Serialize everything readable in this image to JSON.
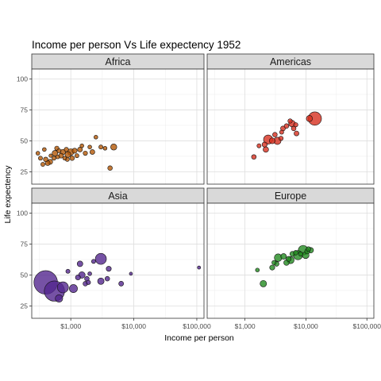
{
  "chart_data": {
    "type": "scatter",
    "title": "Income per person Vs Life expectency 1952",
    "xlabel": "Income per person",
    "ylabel": "Life expectency",
    "x_scale": "log10",
    "xlim": [
      240,
      130000
    ],
    "ylim": [
      15,
      108
    ],
    "x_ticks": [
      1000,
      10000,
      100000
    ],
    "x_tick_labels": [
      "$1,000",
      "$10,000",
      "$100,000"
    ],
    "y_ticks": [
      25,
      50,
      75,
      100
    ],
    "y_tick_labels": [
      "25",
      "50",
      "75",
      "100"
    ],
    "grid": true,
    "facets": [
      {
        "name": "Africa",
        "color": "#b35806",
        "points": [
          {
            "x": 300,
            "y": 40,
            "size": 0.5
          },
          {
            "x": 330,
            "y": 36,
            "size": 0.6
          },
          {
            "x": 360,
            "y": 31,
            "size": 0.6
          },
          {
            "x": 400,
            "y": 35,
            "size": 0.8
          },
          {
            "x": 430,
            "y": 32,
            "size": 0.9
          },
          {
            "x": 470,
            "y": 33,
            "size": 1.0
          },
          {
            "x": 480,
            "y": 38,
            "size": 0.4
          },
          {
            "x": 540,
            "y": 36,
            "size": 0.6
          },
          {
            "x": 560,
            "y": 40,
            "size": 1.3
          },
          {
            "x": 620,
            "y": 37,
            "size": 0.5
          },
          {
            "x": 650,
            "y": 42,
            "size": 0.6
          },
          {
            "x": 700,
            "y": 38,
            "size": 0.9
          },
          {
            "x": 750,
            "y": 41,
            "size": 1.1
          },
          {
            "x": 800,
            "y": 36,
            "size": 0.5
          },
          {
            "x": 850,
            "y": 43,
            "size": 0.7
          },
          {
            "x": 900,
            "y": 39,
            "size": 1.4
          },
          {
            "x": 1000,
            "y": 41,
            "size": 1.8
          },
          {
            "x": 1050,
            "y": 36,
            "size": 0.8
          },
          {
            "x": 1150,
            "y": 42,
            "size": 1.0
          },
          {
            "x": 1250,
            "y": 38,
            "size": 0.6
          },
          {
            "x": 1400,
            "y": 43,
            "size": 0.9
          },
          {
            "x": 1500,
            "y": 46,
            "size": 0.5
          },
          {
            "x": 1700,
            "y": 40,
            "size": 0.7
          },
          {
            "x": 2000,
            "y": 45,
            "size": 0.5
          },
          {
            "x": 2200,
            "y": 41,
            "size": 0.9
          },
          {
            "x": 2500,
            "y": 53,
            "size": 0.5
          },
          {
            "x": 3000,
            "y": 45,
            "size": 0.6
          },
          {
            "x": 3500,
            "y": 44,
            "size": 0.5
          },
          {
            "x": 4200,
            "y": 28,
            "size": 0.8
          },
          {
            "x": 4800,
            "y": 45,
            "size": 1.6
          },
          {
            "x": 880,
            "y": 35,
            "size": 0.6
          },
          {
            "x": 600,
            "y": 44,
            "size": 0.7
          },
          {
            "x": 380,
            "y": 43,
            "size": 0.5
          }
        ]
      },
      {
        "name": "Americas",
        "color": "#d7301f",
        "points": [
          {
            "x": 1400,
            "y": 37,
            "size": 0.8
          },
          {
            "x": 1700,
            "y": 46,
            "size": 0.6
          },
          {
            "x": 2100,
            "y": 47,
            "size": 1.0
          },
          {
            "x": 2200,
            "y": 43,
            "size": 1.2
          },
          {
            "x": 2400,
            "y": 51,
            "size": 4.0
          },
          {
            "x": 2800,
            "y": 50,
            "size": 1.4
          },
          {
            "x": 3100,
            "y": 55,
            "size": 0.8
          },
          {
            "x": 3400,
            "y": 50,
            "size": 2.4
          },
          {
            "x": 3900,
            "y": 52,
            "size": 0.7
          },
          {
            "x": 4000,
            "y": 57,
            "size": 0.6
          },
          {
            "x": 4200,
            "y": 60,
            "size": 0.9
          },
          {
            "x": 4800,
            "y": 62,
            "size": 0.8
          },
          {
            "x": 5900,
            "y": 64,
            "size": 1.8
          },
          {
            "x": 5500,
            "y": 66,
            "size": 0.7
          },
          {
            "x": 6300,
            "y": 60,
            "size": 0.8
          },
          {
            "x": 6800,
            "y": 63,
            "size": 0.7
          },
          {
            "x": 7000,
            "y": 56,
            "size": 0.9
          },
          {
            "x": 11400,
            "y": 68,
            "size": 1.6
          },
          {
            "x": 13990,
            "y": 68,
            "size": 9.0
          }
        ]
      },
      {
        "name": "Asia",
        "color": "#54278f",
        "points": [
          {
            "x": 400,
            "y": 44,
            "size": 30.0
          },
          {
            "x": 550,
            "y": 37,
            "size": 22.0
          },
          {
            "x": 750,
            "y": 40,
            "size": 6.0
          },
          {
            "x": 650,
            "y": 31,
            "size": 2.5
          },
          {
            "x": 1100,
            "y": 39,
            "size": 3.0
          },
          {
            "x": 1500,
            "y": 50,
            "size": 1.8
          },
          {
            "x": 1300,
            "y": 48,
            "size": 1.0
          },
          {
            "x": 1400,
            "y": 59,
            "size": 1.3
          },
          {
            "x": 1800,
            "y": 47,
            "size": 0.8
          },
          {
            "x": 1900,
            "y": 44,
            "size": 0.7
          },
          {
            "x": 2000,
            "y": 51,
            "size": 0.5
          },
          {
            "x": 2300,
            "y": 61,
            "size": 0.6
          },
          {
            "x": 3000,
            "y": 63,
            "size": 6.0
          },
          {
            "x": 3000,
            "y": 45,
            "size": 1.8
          },
          {
            "x": 3800,
            "y": 47,
            "size": 0.8
          },
          {
            "x": 4000,
            "y": 55,
            "size": 1.0
          },
          {
            "x": 6300,
            "y": 43,
            "size": 0.9
          },
          {
            "x": 9000,
            "y": 51,
            "size": 0.3
          },
          {
            "x": 108382,
            "y": 56,
            "size": 0.3
          },
          {
            "x": 900,
            "y": 53,
            "size": 0.6
          },
          {
            "x": 1700,
            "y": 43,
            "size": 0.8
          }
        ]
      },
      {
        "name": "Europe",
        "color": "#238b21",
        "points": [
          {
            "x": 1600,
            "y": 54,
            "size": 0.5
          },
          {
            "x": 2000,
            "y": 43,
            "size": 1.8
          },
          {
            "x": 2800,
            "y": 56,
            "size": 1.0
          },
          {
            "x": 3000,
            "y": 60,
            "size": 0.7
          },
          {
            "x": 3500,
            "y": 64,
            "size": 2.6
          },
          {
            "x": 4300,
            "y": 65,
            "size": 1.3
          },
          {
            "x": 4800,
            "y": 60,
            "size": 1.2
          },
          {
            "x": 5600,
            "y": 62,
            "size": 2.2
          },
          {
            "x": 6000,
            "y": 67,
            "size": 1.0
          },
          {
            "x": 6800,
            "y": 68,
            "size": 0.8
          },
          {
            "x": 7400,
            "y": 66,
            "size": 4.0
          },
          {
            "x": 8200,
            "y": 67,
            "size": 0.7
          },
          {
            "x": 9000,
            "y": 70,
            "size": 4.5
          },
          {
            "x": 9900,
            "y": 66,
            "size": 2.0
          },
          {
            "x": 10500,
            "y": 69,
            "size": 1.0
          },
          {
            "x": 11000,
            "y": 71,
            "size": 0.8
          },
          {
            "x": 12000,
            "y": 70,
            "size": 1.2
          },
          {
            "x": 3300,
            "y": 59,
            "size": 0.9
          },
          {
            "x": 5200,
            "y": 63,
            "size": 1.0
          }
        ]
      }
    ]
  }
}
